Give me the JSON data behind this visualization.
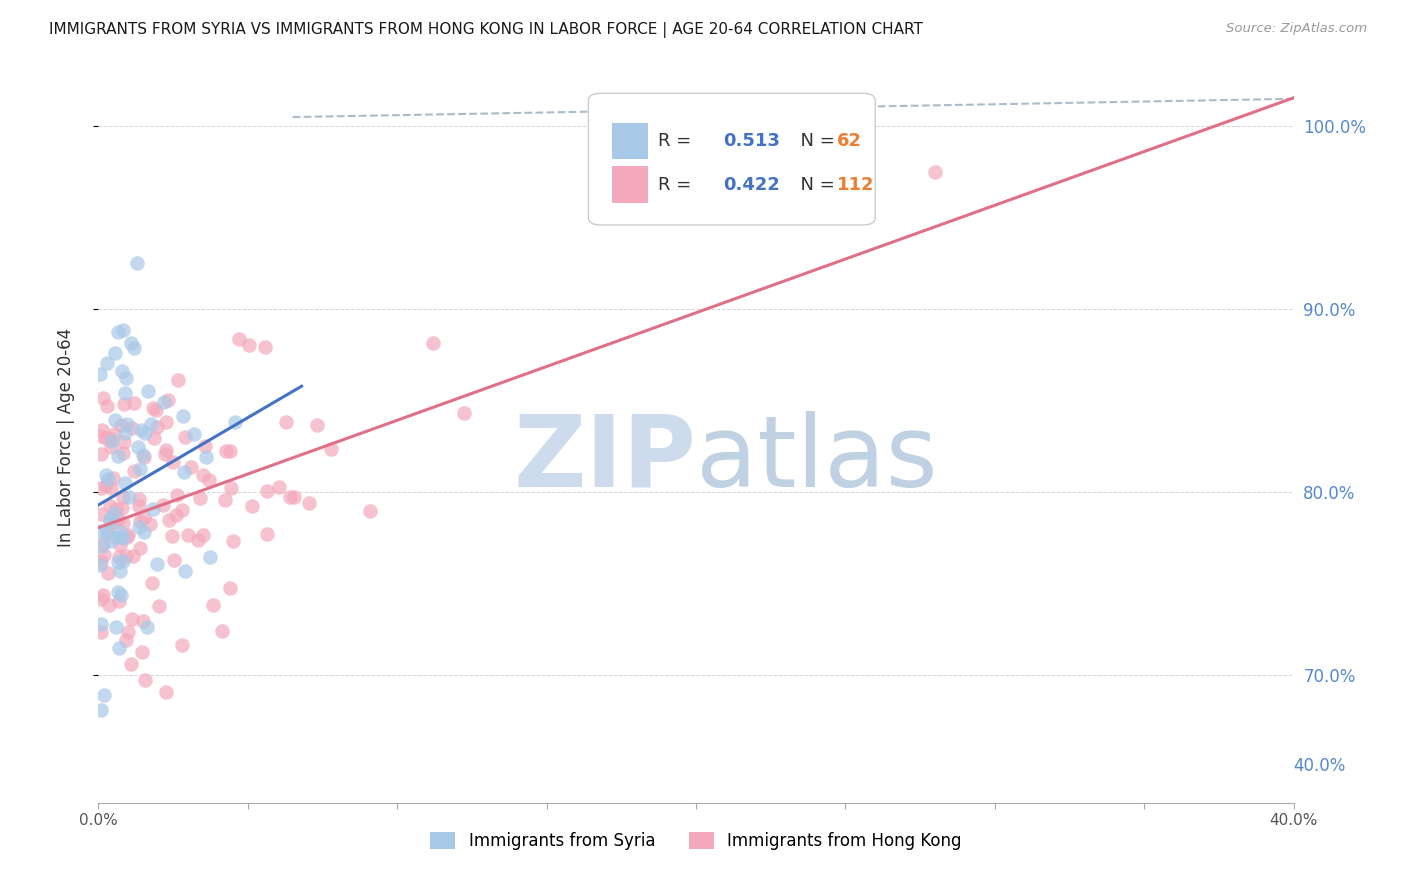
{
  "title": "IMMIGRANTS FROM SYRIA VS IMMIGRANTS FROM HONG KONG IN LABOR FORCE | AGE 20-64 CORRELATION CHART",
  "source": "Source: ZipAtlas.com",
  "ylabel": "In Labor Force | Age 20-64",
  "xlim": [
    0.0,
    0.4
  ],
  "ylim": [
    0.63,
    1.03
  ],
  "syria_color": "#a8c8e8",
  "hongkong_color": "#f4a8bc",
  "syria_line_color": "#4472c4",
  "hongkong_line_color": "#e07088",
  "legend_R_color": "#4472c4",
  "legend_N_color": "#ed7d31",
  "right_axis_color": "#5588cc",
  "grid_color": "#cccccc",
  "ref_line_color": "#aabbcc",
  "watermark_ZIP_color": "#c8d8ea",
  "watermark_atlas_color": "#b8cce0"
}
